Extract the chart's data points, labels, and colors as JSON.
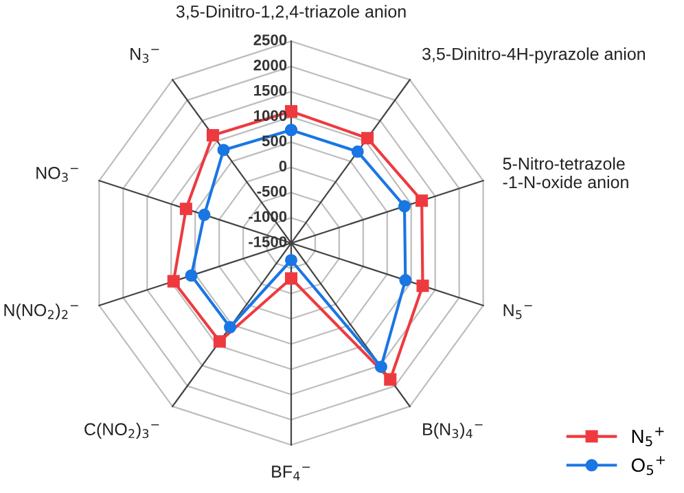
{
  "chart_data": {
    "type": "radar",
    "categories": [
      "3,5-Dinitro-1,2,4-triazole anion",
      "3,5-Dinitro-4H-pyrazole anion",
      "5-Nitro-tetrazole\n-1-N-oxide anion",
      "N$_{5}$$^{−}$",
      "B(N$_{3}$)$_{4}$$^{−}$",
      "BF$_{4}$$^{−}$",
      "C(NO$_{2}$)$_{3}$$^{−}$",
      "N(NO$_{2}$)$_{2}$$^{−}$",
      "NO$_{3}$$^{−}$",
      "N$_{3}$$^{−}$"
    ],
    "series": [
      {
        "name": "N$_{5}$$^{+}$",
        "color": "#ee3a3f",
        "marker": "square",
        "values": [
          1110,
          1070,
          1220,
          1240,
          1840,
          -800,
          910,
          950,
          690,
          1140
        ]
      },
      {
        "name": "O$_{5}$$^{+}$",
        "color": "#1a76e3",
        "marker": "circle",
        "values": [
          740,
          740,
          860,
          880,
          1530,
          -1160,
          560,
          580,
          310,
          780
        ]
      }
    ],
    "ylim": [
      -1500,
      2500
    ],
    "yticks": [
      -1500,
      -1000,
      -500,
      0,
      500,
      1000,
      1500,
      2000,
      2500
    ],
    "grid": true,
    "legend": "bottom right",
    "line_style": "solid"
  }
}
